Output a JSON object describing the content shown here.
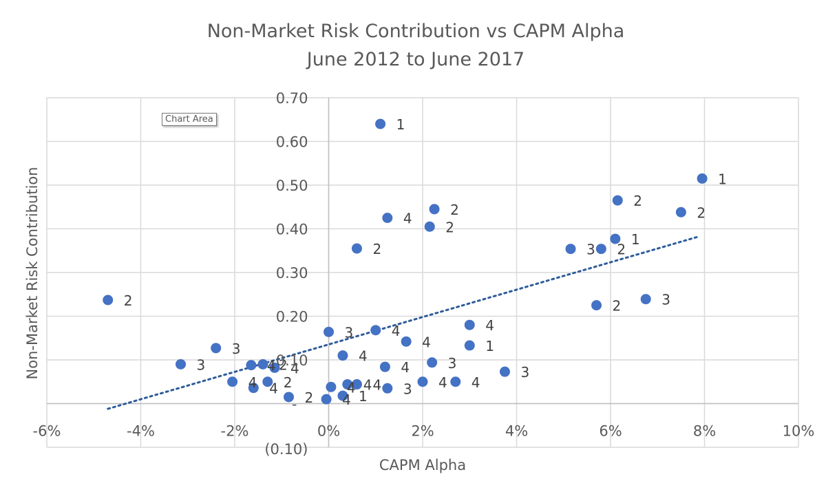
{
  "chart_data": {
    "type": "scatter",
    "title": "Non-Market Risk Contribution vs CAPM Alpha",
    "subtitle": "June 2012 to June 2017",
    "xlabel": "CAPM Alpha",
    "ylabel": "Non-Market Risk Contribution",
    "xlim": [
      -6,
      10
    ],
    "ylim": [
      -0.1,
      0.7
    ],
    "x_unit": "percent",
    "x_ticks": [
      -6,
      -4,
      -2,
      0,
      2,
      4,
      6,
      8,
      10
    ],
    "x_tick_labels": [
      "-6%",
      "-4%",
      "-2%",
      "0%",
      "2%",
      "4%",
      "6%",
      "8%",
      "10%"
    ],
    "y_ticks": [
      -0.1,
      0.1,
      0.2,
      0.3,
      0.4,
      0.5,
      0.6,
      0.7
    ],
    "y_tick_labels": [
      "(0.10)",
      "0.10",
      "0.20",
      "0.30",
      "0.40",
      "0.50",
      "0.60",
      "0.70"
    ],
    "y_zero_label": "-",
    "grid": true,
    "marker_color": "#4472C4",
    "trendline": {
      "type": "linear",
      "style": "dotted",
      "color": "#2E5C9A",
      "x_range": [
        -4.7,
        7.9
      ],
      "y_at_start": -0.012,
      "y_at_end": 0.383
    },
    "points": [
      {
        "x": 1.1,
        "y": 0.64,
        "label": "1"
      },
      {
        "x": 7.95,
        "y": 0.515,
        "label": "1"
      },
      {
        "x": 6.15,
        "y": 0.465,
        "label": "2"
      },
      {
        "x": 7.5,
        "y": 0.438,
        "label": "2"
      },
      {
        "x": 2.25,
        "y": 0.445,
        "label": "2"
      },
      {
        "x": 1.25,
        "y": 0.425,
        "label": "4"
      },
      {
        "x": 2.15,
        "y": 0.405,
        "label": "2"
      },
      {
        "x": 0.6,
        "y": 0.355,
        "label": "2"
      },
      {
        "x": 6.1,
        "y": 0.377,
        "label": "1"
      },
      {
        "x": 5.15,
        "y": 0.354,
        "label": "3"
      },
      {
        "x": 5.8,
        "y": 0.354,
        "label": "2"
      },
      {
        "x": -4.7,
        "y": 0.237,
        "label": "2"
      },
      {
        "x": 5.7,
        "y": 0.225,
        "label": "2"
      },
      {
        "x": 6.75,
        "y": 0.239,
        "label": "3"
      },
      {
        "x": 3.0,
        "y": 0.18,
        "label": "4"
      },
      {
        "x": 0.0,
        "y": 0.164,
        "label": "3"
      },
      {
        "x": 1.0,
        "y": 0.168,
        "label": "4"
      },
      {
        "x": 1.65,
        "y": 0.142,
        "label": "4"
      },
      {
        "x": 3.0,
        "y": 0.133,
        "label": "1"
      },
      {
        "x": -2.4,
        "y": 0.127,
        "label": "3"
      },
      {
        "x": 0.3,
        "y": 0.11,
        "label": "4"
      },
      {
        "x": -3.15,
        "y": 0.09,
        "label": "3"
      },
      {
        "x": 1.2,
        "y": 0.084,
        "label": "4"
      },
      {
        "x": 2.2,
        "y": 0.094,
        "label": "3"
      },
      {
        "x": 3.75,
        "y": 0.073,
        "label": "3"
      },
      {
        "x": -1.65,
        "y": 0.088,
        "label": "4"
      },
      {
        "x": -1.4,
        "y": 0.09,
        "label": "2"
      },
      {
        "x": -1.15,
        "y": 0.082,
        "label": "4"
      },
      {
        "x": -2.05,
        "y": 0.05,
        "label": "4"
      },
      {
        "x": -1.6,
        "y": 0.036,
        "label": "4"
      },
      {
        "x": -1.3,
        "y": 0.05,
        "label": "2"
      },
      {
        "x": -0.85,
        "y": 0.015,
        "label": "2"
      },
      {
        "x": 2.0,
        "y": 0.05,
        "label": "4"
      },
      {
        "x": 2.7,
        "y": 0.05,
        "label": "4"
      },
      {
        "x": 0.05,
        "y": 0.038,
        "label": "4"
      },
      {
        "x": 0.4,
        "y": 0.044,
        "label": "4"
      },
      {
        "x": 0.6,
        "y": 0.044,
        "label": "4"
      },
      {
        "x": 1.25,
        "y": 0.035,
        "label": "3"
      },
      {
        "x": -0.05,
        "y": 0.01,
        "label": "4"
      },
      {
        "x": 0.3,
        "y": 0.018,
        "label": "1"
      }
    ]
  },
  "tooltip": {
    "text": "Chart Area"
  }
}
